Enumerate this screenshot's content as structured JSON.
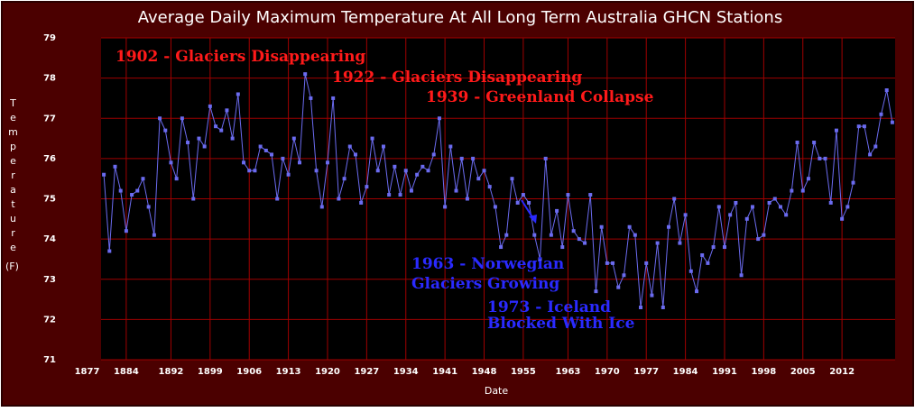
{
  "chart_data": {
    "type": "line",
    "title": "Average Daily Maximum Temperature At All Long Term Australia GHCN Stations",
    "x_label": "Date",
    "y_label": "Temperature",
    "y_unit": "(F)",
    "x": [
      1880,
      1881,
      1882,
      1883,
      1884,
      1885,
      1886,
      1887,
      1888,
      1889,
      1890,
      1891,
      1892,
      1893,
      1894,
      1895,
      1896,
      1897,
      1898,
      1899,
      1900,
      1901,
      1902,
      1903,
      1904,
      1905,
      1906,
      1907,
      1908,
      1909,
      1910,
      1911,
      1912,
      1913,
      1914,
      1915,
      1916,
      1917,
      1918,
      1919,
      1920,
      1921,
      1922,
      1923,
      1924,
      1925,
      1926,
      1927,
      1928,
      1929,
      1930,
      1931,
      1932,
      1933,
      1934,
      1935,
      1936,
      1937,
      1938,
      1939,
      1940,
      1941,
      1942,
      1943,
      1944,
      1945,
      1946,
      1947,
      1948,
      1949,
      1950,
      1951,
      1952,
      1953,
      1954,
      1955,
      1956,
      1957,
      1958,
      1959,
      1960,
      1961,
      1962,
      1963,
      1964,
      1965,
      1966,
      1967,
      1968,
      1969,
      1970,
      1971,
      1972,
      1973,
      1974,
      1975,
      1976,
      1977,
      1978,
      1979,
      1980,
      1981,
      1982,
      1983,
      1984,
      1985,
      1986,
      1987,
      1988,
      1989,
      1990,
      1991,
      1992,
      1993,
      1994,
      1995,
      1996,
      1997,
      1998,
      1999,
      2000,
      2001,
      2002,
      2003,
      2004,
      2005,
      2006,
      2007,
      2008,
      2009,
      2010,
      2011,
      2012,
      2013,
      2014,
      2015,
      2016,
      2017,
      2018,
      2019,
      2020,
      2021
    ],
    "series": [
      {
        "name": "Temperature",
        "color": "#6b6bf0",
        "values": [
          75.6,
          73.7,
          75.8,
          75.2,
          74.2,
          75.1,
          75.2,
          75.5,
          74.8,
          74.1,
          77.0,
          76.7,
          75.9,
          75.5,
          77.0,
          76.4,
          75.0,
          76.5,
          76.3,
          77.3,
          76.8,
          76.7,
          77.2,
          76.5,
          77.6,
          75.9,
          75.7,
          75.7,
          76.3,
          76.2,
          76.1,
          75.0,
          76.0,
          75.6,
          76.5,
          75.9,
          78.1,
          77.5,
          75.7,
          74.8,
          75.9,
          77.5,
          75.0,
          75.5,
          76.3,
          76.1,
          74.9,
          75.3,
          76.5,
          75.7,
          76.3,
          75.1,
          75.8,
          75.1,
          75.7,
          75.2,
          75.6,
          75.8,
          75.7,
          76.1,
          77.0,
          74.8,
          76.3,
          75.2,
          76.0,
          75.0,
          76.0,
          75.5,
          75.7,
          75.3,
          74.8,
          73.8,
          74.1,
          75.5,
          74.9,
          75.1,
          74.9,
          74.1,
          73.5,
          76.0,
          74.1,
          74.7,
          73.8,
          75.1,
          74.2,
          74.0,
          73.9,
          75.1,
          72.7,
          74.3,
          73.4,
          73.4,
          72.8,
          73.1,
          74.3,
          74.1,
          72.3,
          73.4,
          72.6,
          73.9,
          72.3,
          74.3,
          75.0,
          73.9,
          74.6,
          73.2,
          72.7,
          73.6,
          73.4,
          73.8,
          74.8,
          73.8,
          74.6,
          74.9,
          73.1,
          74.5,
          74.8,
          74.0,
          74.1,
          74.9,
          75.0,
          74.8,
          74.6,
          75.2,
          76.4,
          75.2,
          75.5,
          76.4,
          76.0,
          76.0,
          74.9,
          76.7,
          74.5,
          74.8,
          75.4,
          76.8,
          76.8,
          76.1,
          76.3,
          77.1,
          77.7,
          76.9
        ]
      }
    ],
    "xlim": [
      1879.5,
      2021.5
    ],
    "xticks": [
      1877,
      1884,
      1892,
      1899,
      1906,
      1913,
      1920,
      1927,
      1934,
      1941,
      1948,
      1955,
      1963,
      1970,
      1977,
      1984,
      1991,
      1998,
      2005,
      2012
    ],
    "ylim": [
      71,
      79
    ],
    "yticks": [
      71,
      72,
      73,
      74,
      75,
      76,
      77,
      78,
      79
    ],
    "grid": true,
    "annotations": [
      {
        "text": "1902 - Glaciers Disappearing",
        "color": "#ff1a1a"
      },
      {
        "text": "1922 - Glaciers Disappearing",
        "color": "#ff1a1a"
      },
      {
        "text": "1939 - Greenland Collapse",
        "color": "#ff1a1a"
      },
      {
        "text": "1963 - Norwegian",
        "color": "#2a2aff"
      },
      {
        "text": "Glaciers Growing",
        "color": "#2a2aff"
      },
      {
        "text": "1973 - Iceland",
        "color": "#2a2aff"
      },
      {
        "text": "Blocked With Ice",
        "color": "#2a2aff"
      }
    ]
  }
}
